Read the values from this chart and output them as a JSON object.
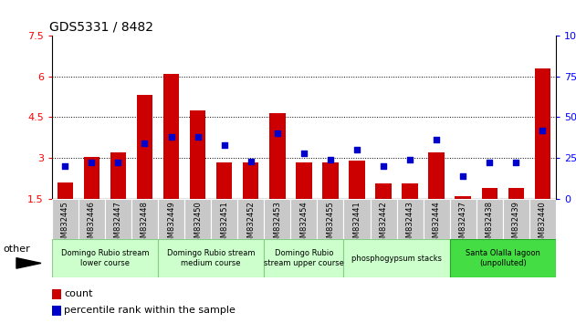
{
  "title": "GDS5331 / 8482",
  "samples": [
    "GSM832445",
    "GSM832446",
    "GSM832447",
    "GSM832448",
    "GSM832449",
    "GSM832450",
    "GSM832451",
    "GSM832452",
    "GSM832453",
    "GSM832454",
    "GSM832455",
    "GSM832441",
    "GSM832442",
    "GSM832443",
    "GSM832444",
    "GSM832437",
    "GSM832438",
    "GSM832439",
    "GSM832440"
  ],
  "bar_values": [
    2.1,
    3.05,
    3.2,
    5.3,
    6.1,
    4.75,
    2.82,
    2.82,
    4.65,
    2.82,
    2.82,
    2.9,
    2.05,
    2.05,
    3.2,
    1.58,
    1.9,
    1.9,
    6.3
  ],
  "dot_values": [
    20,
    22,
    22,
    34,
    38,
    38,
    33,
    23,
    40,
    28,
    24,
    30,
    20,
    24,
    36,
    14,
    22,
    22,
    42
  ],
  "ylim_left": [
    1.5,
    7.5
  ],
  "ylim_right": [
    0,
    100
  ],
  "yticks_left": [
    1.5,
    3.0,
    4.5,
    6.0,
    7.5
  ],
  "yticks_right": [
    0,
    25,
    50,
    75,
    100
  ],
  "bar_color": "#cc0000",
  "dot_color": "#0000cc",
  "bg_color": "#ffffff",
  "xtick_bg": "#c8c8c8",
  "groups": [
    {
      "label": "Domingo Rubio stream\nlower course",
      "start": 0,
      "end": 4,
      "color": "#ccffcc",
      "border": "#88cc88"
    },
    {
      "label": "Domingo Rubio stream\nmedium course",
      "start": 4,
      "end": 8,
      "color": "#ccffcc",
      "border": "#88cc88"
    },
    {
      "label": "Domingo Rubio\nstream upper course",
      "start": 8,
      "end": 11,
      "color": "#ccffcc",
      "border": "#88cc88"
    },
    {
      "label": "phosphogypsum stacks",
      "start": 11,
      "end": 15,
      "color": "#ccffcc",
      "border": "#88cc88"
    },
    {
      "label": "Santa Olalla lagoon\n(unpolluted)",
      "start": 15,
      "end": 19,
      "color": "#44dd44",
      "border": "#22aa22"
    }
  ],
  "bar_width": 0.6,
  "legend_count_color": "#cc0000",
  "legend_dot_color": "#0000cc"
}
